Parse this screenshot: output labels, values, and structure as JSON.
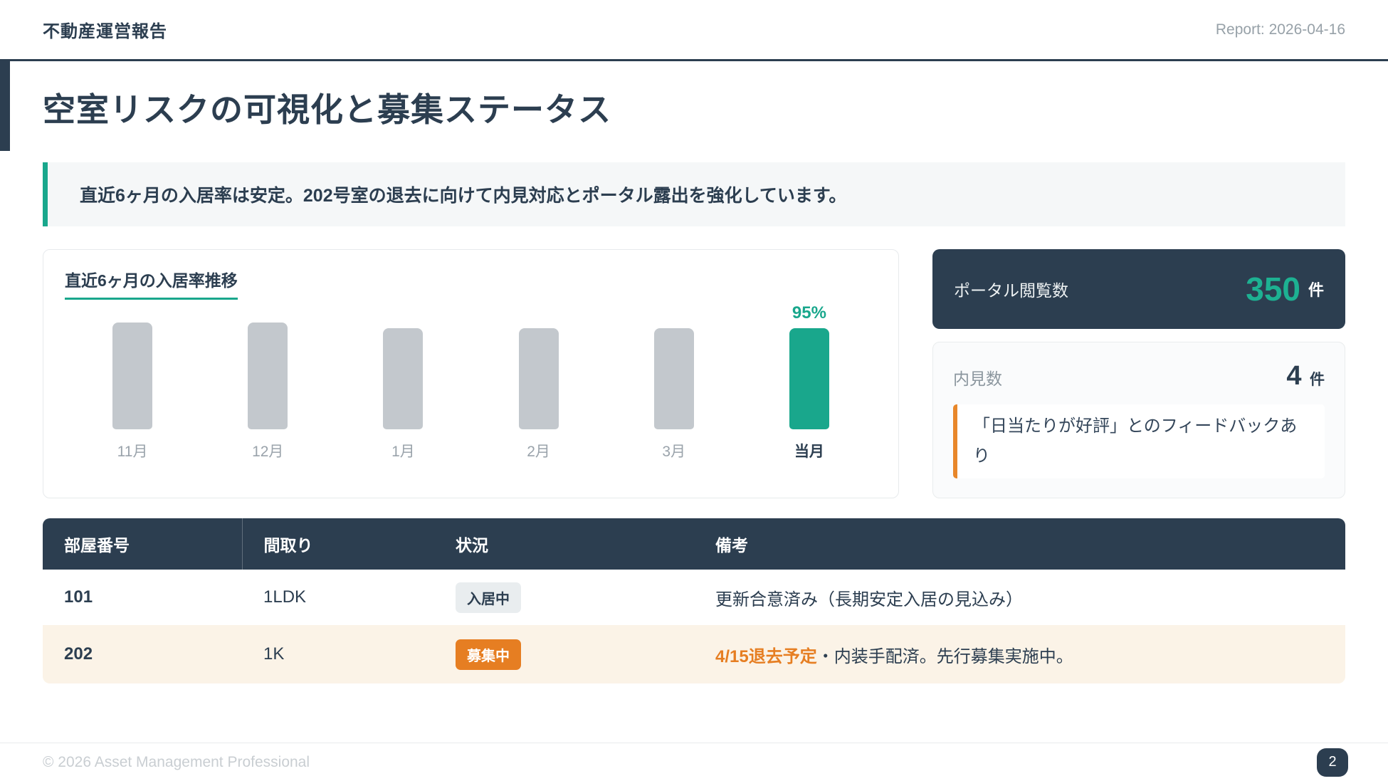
{
  "header": {
    "app_title": "不動産運営報告",
    "report_label": "Report: 2026-04-16"
  },
  "page": {
    "title": "空室リスクの可視化と募集ステータス",
    "summary": "直近6ヶ月の入居率は安定。202号室の退去に向けて内見対応とポータル露出を強化しています。"
  },
  "chart_data": {
    "type": "bar",
    "title": "直近6ヶ月の入居率推移",
    "categories": [
      "11月",
      "12月",
      "1月",
      "2月",
      "3月",
      "当月"
    ],
    "values": [
      100,
      100,
      95,
      95,
      95,
      95
    ],
    "unit": "%",
    "ylim": [
      0,
      100
    ],
    "highlight_index": 5,
    "highlight_label": "95%",
    "legend": false,
    "grid": false,
    "bar_color": "#c3c8cd",
    "highlight_color": "#19a78c"
  },
  "stats": {
    "portal": {
      "label": "ポータル閲覧数",
      "value": "350",
      "unit": "件"
    },
    "viewings": {
      "label": "内見数",
      "value": "4",
      "unit": "件",
      "feedback": "「日当たりが好評」とのフィードバックあり"
    }
  },
  "table": {
    "columns": [
      "部屋番号",
      "間取り",
      "状況",
      "備考"
    ],
    "rows": [
      {
        "room": "101",
        "layout": "1LDK",
        "status": "入居中",
        "status_type": "occupied",
        "highlighted": false,
        "note_highlight": "",
        "note": "更新合意済み（長期安定入居の見込み）"
      },
      {
        "room": "202",
        "layout": "1K",
        "status": "募集中",
        "status_type": "recruiting",
        "highlighted": true,
        "note_highlight": "4/15退去予定",
        "note": "・内装手配済。先行募集実施中。"
      }
    ]
  },
  "footer": {
    "copyright": "© 2026 Asset Management Professional",
    "page_number": "2"
  },
  "colors": {
    "navy": "#2c3e50",
    "accent_teal": "#19a78c",
    "accent_orange": "#e67e22",
    "bar_gray": "#c3c8cd",
    "row_highlight_bg": "#fbf3e7"
  }
}
